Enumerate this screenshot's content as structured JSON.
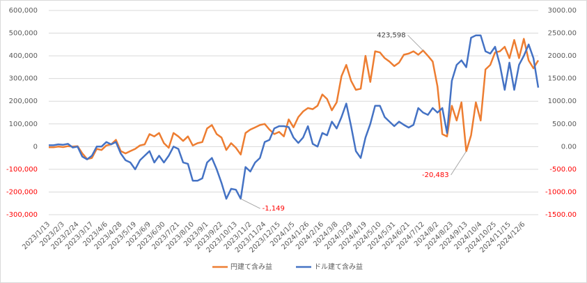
{
  "chart_data": {
    "type": "line",
    "categories": [
      "2023/1/13",
      null,
      null,
      "2023/2/3",
      null,
      null,
      "2023/2/24",
      null,
      null,
      "2023/3/17",
      null,
      null,
      "2023/4/6",
      null,
      null,
      "2023/4/28",
      null,
      null,
      "2023/5/19",
      null,
      null,
      "2023/6/9",
      null,
      null,
      "2023/6/30",
      null,
      null,
      "2023/7/21",
      null,
      null,
      "2023/8/10",
      null,
      null,
      "2023/9/1",
      null,
      null,
      "2023/9/22",
      null,
      null,
      "2023/10/13",
      null,
      null,
      "2023/11/2",
      null,
      null,
      "2023/11/24",
      null,
      null,
      "2023/12/15",
      null,
      null,
      "2024/1/5",
      null,
      null,
      "2024/1/26",
      null,
      null,
      "2024/2/16",
      null,
      null,
      "2024/3/8",
      null,
      null,
      "2024/3/29",
      null,
      null,
      "2024/4/19",
      null,
      null,
      "2024/5/10",
      null,
      null,
      "2024/5/31",
      null,
      null,
      "2024/6/21",
      null,
      null,
      "2024/7/12",
      null,
      null,
      "2024/8/2",
      null,
      null,
      "2024/8/23",
      null,
      null,
      "2024/9/13",
      null,
      null,
      "2024/10/4",
      null,
      null,
      "2024/10/25",
      null,
      null,
      "2024/11/15",
      null,
      null,
      "2024/12/6",
      null,
      null,
      null
    ],
    "series": [
      {
        "name": "円建て含み益",
        "color": "#ed7d31",
        "values": [
          -3000,
          -3000,
          0,
          -2000,
          2000,
          0,
          2000,
          -30000,
          -55000,
          -50000,
          -10000,
          -15000,
          5000,
          10000,
          30000,
          -20000,
          -30000,
          -20000,
          -10000,
          5000,
          10000,
          55000,
          45000,
          60000,
          15000,
          -5000,
          60000,
          45000,
          25000,
          45000,
          5000,
          15000,
          20000,
          80000,
          95000,
          55000,
          40000,
          -15000,
          15000,
          -5000,
          -35000,
          60000,
          75000,
          85000,
          95000,
          100000,
          75000,
          55000,
          65000,
          45000,
          120000,
          85000,
          130000,
          155000,
          170000,
          165000,
          180000,
          230000,
          210000,
          160000,
          195000,
          310000,
          360000,
          290000,
          250000,
          255000,
          400000,
          285000,
          420000,
          415000,
          390000,
          375000,
          355000,
          370000,
          405000,
          410000,
          420000,
          405000,
          423598,
          400000,
          375000,
          265000,
          55000,
          45000,
          180000,
          115000,
          195000,
          -20483,
          50000,
          195000,
          115000,
          340000,
          360000,
          415000,
          420000,
          440000,
          390000,
          470000,
          390000,
          475000,
          380000,
          345000,
          380000
        ],
        "value_labels": [
          null,
          null,
          null,
          null,
          null,
          null,
          null,
          null,
          null,
          null,
          null,
          null,
          null,
          null,
          null,
          null,
          null,
          null,
          null,
          null,
          null,
          null,
          null,
          null,
          null,
          null,
          null,
          null,
          null,
          null,
          null,
          null,
          null,
          null,
          null,
          null,
          null,
          null,
          null,
          null,
          null,
          null,
          null,
          null,
          null,
          null,
          null,
          null,
          null,
          null,
          null,
          null,
          null,
          null,
          null,
          null,
          null,
          null,
          null,
          null,
          null,
          null,
          null,
          null,
          null,
          null,
          null,
          null,
          null,
          null,
          null,
          null,
          null,
          null,
          null,
          null,
          null,
          null,
          "423,598",
          null,
          null,
          null,
          null,
          null,
          null,
          null,
          null,
          "-20,483",
          null,
          null,
          null,
          null,
          null,
          null,
          null,
          null,
          null,
          null,
          null,
          null,
          null,
          null,
          null
        ]
      },
      {
        "name": "ドル建て含み益",
        "color": "#4472c4",
        "axis": "y2",
        "values": [
          30,
          30,
          50,
          40,
          60,
          -20,
          0,
          -220,
          -280,
          -200,
          0,
          0,
          100,
          50,
          100,
          -150,
          -300,
          -350,
          -500,
          -300,
          -200,
          -100,
          -350,
          -200,
          -350,
          -200,
          0,
          -50,
          -350,
          -380,
          -750,
          -750,
          -700,
          -350,
          -250,
          -500,
          -800,
          -1150,
          -930,
          -950,
          -1149,
          -450,
          -550,
          -350,
          -250,
          100,
          150,
          400,
          450,
          450,
          430,
          200,
          80,
          200,
          450,
          60,
          0,
          300,
          250,
          550,
          400,
          650,
          950,
          450,
          -100,
          -250,
          200,
          500,
          900,
          900,
          650,
          550,
          450,
          550,
          480,
          420,
          480,
          850,
          750,
          700,
          850,
          750,
          850,
          300,
          1450,
          1800,
          1900,
          1750,
          2400,
          2450,
          2450,
          2100,
          2050,
          2200,
          1800,
          1250,
          1850,
          1250,
          1800,
          2000,
          2250,
          1950,
          1300
        ],
        "value_labels": [
          null,
          null,
          null,
          null,
          null,
          null,
          null,
          null,
          null,
          null,
          null,
          null,
          null,
          null,
          null,
          null,
          null,
          null,
          null,
          null,
          null,
          null,
          null,
          null,
          null,
          null,
          null,
          null,
          null,
          null,
          null,
          null,
          null,
          null,
          null,
          null,
          null,
          null,
          null,
          null,
          "-1,149",
          null,
          null,
          null,
          null,
          null,
          null,
          null,
          null,
          null,
          null,
          null,
          null,
          null,
          null,
          null,
          null,
          null,
          null,
          null,
          null,
          null,
          null,
          null,
          null,
          null,
          null,
          null,
          null,
          null,
          null,
          null,
          null,
          null,
          null,
          null,
          null,
          null,
          null,
          null,
          null,
          null,
          null,
          null,
          null,
          null,
          null,
          null,
          null,
          null,
          null,
          null,
          null,
          null,
          null,
          null,
          null,
          null,
          null,
          null,
          null,
          null,
          null
        ]
      }
    ],
    "ylim": [
      -300000,
      600000
    ],
    "yticks": [
      {
        "value": -300000,
        "label": "-300,000"
      },
      {
        "value": -200000,
        "label": "-200,000"
      },
      {
        "value": -100000,
        "label": "-100,000"
      },
      0,
      {
        "value": 100000,
        "label": "100,000"
      },
      {
        "value": 200000,
        "label": "200,000"
      },
      {
        "value": 300000,
        "label": "300,000"
      },
      {
        "value": 400000,
        "label": "400,000"
      },
      {
        "value": 500000,
        "label": "500,000"
      },
      {
        "value": 600000,
        "label": "600,000"
      }
    ],
    "y2lim": [
      -1500,
      3000
    ],
    "y2ticks": [
      {
        "value": -1500,
        "label": "-1500.00"
      },
      {
        "value": -1000,
        "label": "-1000.00"
      },
      {
        "value": -500,
        "label": "-500.00"
      },
      {
        "value": 0,
        "label": "0.00"
      },
      {
        "value": 500,
        "label": "500.00"
      },
      {
        "value": 1000,
        "label": "1000.00"
      },
      {
        "value": 1500,
        "label": "1500.00"
      },
      {
        "value": 2000,
        "label": "2000.00"
      },
      {
        "value": 2500,
        "label": "2500.00"
      },
      {
        "value": 3000,
        "label": "3000.00"
      }
    ],
    "grid": true,
    "negative_color": "#ff0000",
    "legend": "bottom"
  }
}
